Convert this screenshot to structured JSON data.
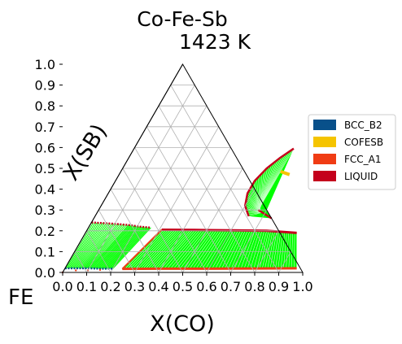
{
  "chart_data": {
    "type": "ternary",
    "title": "Co-Fe-Sb",
    "subtitle": "1423  K",
    "xlabel": "X(CO)",
    "ylabel": "X(SB)",
    "corner_label": "FE",
    "xlim": [
      0,
      1
    ],
    "ylim": [
      0,
      1
    ],
    "x_ticks": [
      "0.0",
      "0.1",
      "0.2",
      "0.3",
      "0.4",
      "0.5",
      "0.6",
      "0.7",
      "0.8",
      "0.9",
      "1.0"
    ],
    "y_ticks": [
      "0.0",
      "0.1",
      "0.2",
      "0.3",
      "0.4",
      "0.5",
      "0.6",
      "0.7",
      "0.8",
      "0.9",
      "1.0"
    ],
    "grid": true,
    "legend_position": "right",
    "legend": [
      {
        "name": "BCC_B2",
        "color": "#08508a"
      },
      {
        "name": "COFESB",
        "color": "#f5c400"
      },
      {
        "name": "FCC_A1",
        "color": "#f03c14"
      },
      {
        "name": "LIQUID",
        "color": "#c4001c"
      }
    ],
    "tie_line_color": "#00ff00",
    "regions": {
      "fcc_liquid_band": {
        "fcc_boundary": [
          [
            0.24,
            0.017
          ],
          [
            0.4,
            0.018
          ],
          [
            0.6,
            0.018
          ],
          [
            0.8,
            0.019
          ],
          [
            0.965,
            0.02
          ]
        ],
        "liquid_boundary": [
          [
            0.31,
            0.205
          ],
          [
            0.45,
            0.204
          ],
          [
            0.6,
            0.202
          ],
          [
            0.75,
            0.2
          ],
          [
            0.88,
            0.19
          ]
        ]
      },
      "bcc_liquid_region": {
        "bcc_boundary": [
          [
            0.0,
            0.02
          ],
          [
            0.05,
            0.02
          ],
          [
            0.1,
            0.02
          ],
          [
            0.15,
            0.018
          ],
          [
            0.2,
            0.018
          ]
        ],
        "liquid_boundary": [
          [
            0.0,
            0.24
          ],
          [
            0.08,
            0.235
          ],
          [
            0.16,
            0.228
          ],
          [
            0.21,
            0.22
          ],
          [
            0.26,
            0.215
          ]
        ],
        "fcc_bcc_dots": [
          [
            0.0,
            0.0
          ],
          [
            0.05,
            0.01
          ],
          [
            0.1,
            0.01
          ],
          [
            0.15,
            0.012
          ]
        ]
      },
      "sb_rich_liquid": {
        "liquid_boundary": [
          [
            0.64,
            0.27
          ],
          [
            0.6,
            0.32
          ],
          [
            0.58,
            0.38
          ],
          [
            0.58,
            0.44
          ],
          [
            0.6,
            0.5
          ],
          [
            0.63,
            0.55
          ],
          [
            0.665,
            0.595
          ]
        ],
        "sb_side_boundary": [
          [
            0.665,
            0.3
          ],
          [
            0.74,
            0.26
          ]
        ],
        "cofesb": [
          [
            0.665,
            0.485
          ],
          [
            0.71,
            0.47
          ]
        ]
      }
    }
  }
}
